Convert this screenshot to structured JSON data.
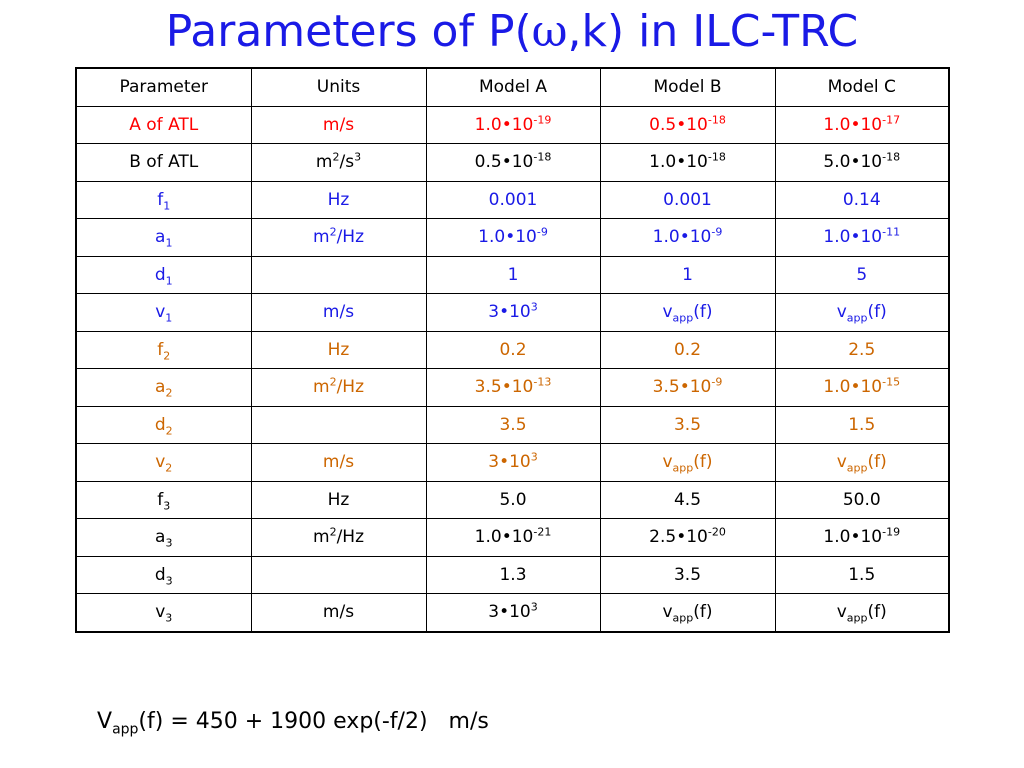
{
  "title": {
    "prefix": "Parameters of P(",
    "omega": "ω",
    "suffix": ",k) in ILC-TRC"
  },
  "colors": {
    "title": "#1a1ae6",
    "black": "#000000",
    "red": "#ff0000",
    "blue": "#1a1ae6",
    "orange": "#cc6600"
  },
  "table": {
    "columns": [
      "Parameter",
      "Units",
      "Model A",
      "Model B",
      "Model C"
    ],
    "rows": [
      {
        "color": "red",
        "cells": [
          [
            {
              "t": "A of ATL"
            }
          ],
          [
            {
              "t": "m/s"
            }
          ],
          [
            {
              "t": "1.0•10"
            },
            {
              "t": "-19",
              "s": "sup"
            }
          ],
          [
            {
              "t": "0.5•10"
            },
            {
              "t": "-18",
              "s": "sup"
            }
          ],
          [
            {
              "t": "1.0•10"
            },
            {
              "t": "-17",
              "s": "sup"
            }
          ]
        ]
      },
      {
        "color": "black",
        "cells": [
          [
            {
              "t": "B of ATL"
            }
          ],
          [
            {
              "t": "m"
            },
            {
              "t": "2",
              "s": "sup"
            },
            {
              "t": "/s"
            },
            {
              "t": "3",
              "s": "sup"
            }
          ],
          [
            {
              "t": "0.5•10"
            },
            {
              "t": "-18",
              "s": "sup"
            }
          ],
          [
            {
              "t": "1.0•10"
            },
            {
              "t": "-18",
              "s": "sup"
            }
          ],
          [
            {
              "t": "5.0•10"
            },
            {
              "t": "-18",
              "s": "sup"
            }
          ]
        ]
      },
      {
        "color": "blue",
        "cells": [
          [
            {
              "t": "f"
            },
            {
              "t": "1",
              "s": "sub"
            }
          ],
          [
            {
              "t": "Hz"
            }
          ],
          [
            {
              "t": "0.001"
            }
          ],
          [
            {
              "t": "0.001"
            }
          ],
          [
            {
              "t": "0.14"
            }
          ]
        ]
      },
      {
        "color": "blue",
        "cells": [
          [
            {
              "t": "a"
            },
            {
              "t": "1",
              "s": "sub"
            }
          ],
          [
            {
              "t": "m"
            },
            {
              "t": "2",
              "s": "sup"
            },
            {
              "t": "/Hz"
            }
          ],
          [
            {
              "t": "1.0•10"
            },
            {
              "t": "-9",
              "s": "sup"
            }
          ],
          [
            {
              "t": "1.0•10"
            },
            {
              "t": "-9",
              "s": "sup"
            }
          ],
          [
            {
              "t": "1.0•10"
            },
            {
              "t": "-11",
              "s": "sup"
            }
          ]
        ]
      },
      {
        "color": "blue",
        "cells": [
          [
            {
              "t": "d"
            },
            {
              "t": "1",
              "s": "sub"
            }
          ],
          [],
          [
            {
              "t": "1"
            }
          ],
          [
            {
              "t": "1"
            }
          ],
          [
            {
              "t": "5"
            }
          ]
        ]
      },
      {
        "color": "blue",
        "cells": [
          [
            {
              "t": "v"
            },
            {
              "t": "1",
              "s": "sub"
            }
          ],
          [
            {
              "t": "m/s"
            }
          ],
          [
            {
              "t": "3•10"
            },
            {
              "t": "3",
              "s": "sup"
            }
          ],
          [
            {
              "t": "v"
            },
            {
              "t": "app",
              "s": "sub"
            },
            {
              "t": "(f)"
            }
          ],
          [
            {
              "t": "v"
            },
            {
              "t": "app",
              "s": "sub"
            },
            {
              "t": "(f)"
            }
          ]
        ]
      },
      {
        "color": "orange",
        "cells": [
          [
            {
              "t": "f"
            },
            {
              "t": "2",
              "s": "sub"
            }
          ],
          [
            {
              "t": "Hz"
            }
          ],
          [
            {
              "t": "0.2"
            }
          ],
          [
            {
              "t": "0.2"
            }
          ],
          [
            {
              "t": "2.5"
            }
          ]
        ]
      },
      {
        "color": "orange",
        "cells": [
          [
            {
              "t": "a"
            },
            {
              "t": "2",
              "s": "sub"
            }
          ],
          [
            {
              "t": "m"
            },
            {
              "t": "2",
              "s": "sup"
            },
            {
              "t": "/Hz"
            }
          ],
          [
            {
              "t": "3.5•10"
            },
            {
              "t": "-13",
              "s": "sup"
            }
          ],
          [
            {
              "t": "3.5•10"
            },
            {
              "t": "-9",
              "s": "sup"
            }
          ],
          [
            {
              "t": "1.0•10"
            },
            {
              "t": "-15",
              "s": "sup"
            }
          ]
        ]
      },
      {
        "color": "orange",
        "cells": [
          [
            {
              "t": "d"
            },
            {
              "t": "2",
              "s": "sub"
            }
          ],
          [],
          [
            {
              "t": "3.5"
            }
          ],
          [
            {
              "t": "3.5"
            }
          ],
          [
            {
              "t": "1.5"
            }
          ]
        ]
      },
      {
        "color": "orange",
        "cells": [
          [
            {
              "t": "v"
            },
            {
              "t": "2",
              "s": "sub"
            }
          ],
          [
            {
              "t": "m/s"
            }
          ],
          [
            {
              "t": "3•10"
            },
            {
              "t": "3",
              "s": "sup"
            }
          ],
          [
            {
              "t": "v"
            },
            {
              "t": "app",
              "s": "sub"
            },
            {
              "t": "(f)"
            }
          ],
          [
            {
              "t": "v"
            },
            {
              "t": "app",
              "s": "sub"
            },
            {
              "t": "(f)"
            }
          ]
        ]
      },
      {
        "color": "black",
        "cells": [
          [
            {
              "t": "f"
            },
            {
              "t": "3",
              "s": "sub"
            }
          ],
          [
            {
              "t": "Hz"
            }
          ],
          [
            {
              "t": "5.0"
            }
          ],
          [
            {
              "t": "4.5"
            }
          ],
          [
            {
              "t": "50.0"
            }
          ]
        ]
      },
      {
        "color": "black",
        "cells": [
          [
            {
              "t": "a"
            },
            {
              "t": "3",
              "s": "sub"
            }
          ],
          [
            {
              "t": "m"
            },
            {
              "t": "2",
              "s": "sup"
            },
            {
              "t": "/Hz"
            }
          ],
          [
            {
              "t": "1.0•10"
            },
            {
              "t": "-21",
              "s": "sup"
            }
          ],
          [
            {
              "t": "2.5•10"
            },
            {
              "t": "-20",
              "s": "sup"
            }
          ],
          [
            {
              "t": "1.0•10"
            },
            {
              "t": "-19",
              "s": "sup"
            }
          ]
        ]
      },
      {
        "color": "black",
        "cells": [
          [
            {
              "t": "d"
            },
            {
              "t": "3",
              "s": "sub"
            }
          ],
          [],
          [
            {
              "t": "1.3"
            }
          ],
          [
            {
              "t": "3.5"
            }
          ],
          [
            {
              "t": "1.5"
            }
          ]
        ]
      },
      {
        "color": "black",
        "cells": [
          [
            {
              "t": "v"
            },
            {
              "t": "3",
              "s": "sub"
            }
          ],
          [
            {
              "t": "m/s"
            }
          ],
          [
            {
              "t": "3•10"
            },
            {
              "t": "3",
              "s": "sup"
            }
          ],
          [
            {
              "t": "v"
            },
            {
              "t": "app",
              "s": "sub"
            },
            {
              "t": "(f)"
            }
          ],
          [
            {
              "t": "v"
            },
            {
              "t": "app",
              "s": "sub"
            },
            {
              "t": "(f)"
            }
          ]
        ]
      }
    ]
  },
  "formula": {
    "v": "V",
    "sub": "app",
    "rest": "(f) = 450 + 1900 exp(-f/2)   m/s"
  }
}
